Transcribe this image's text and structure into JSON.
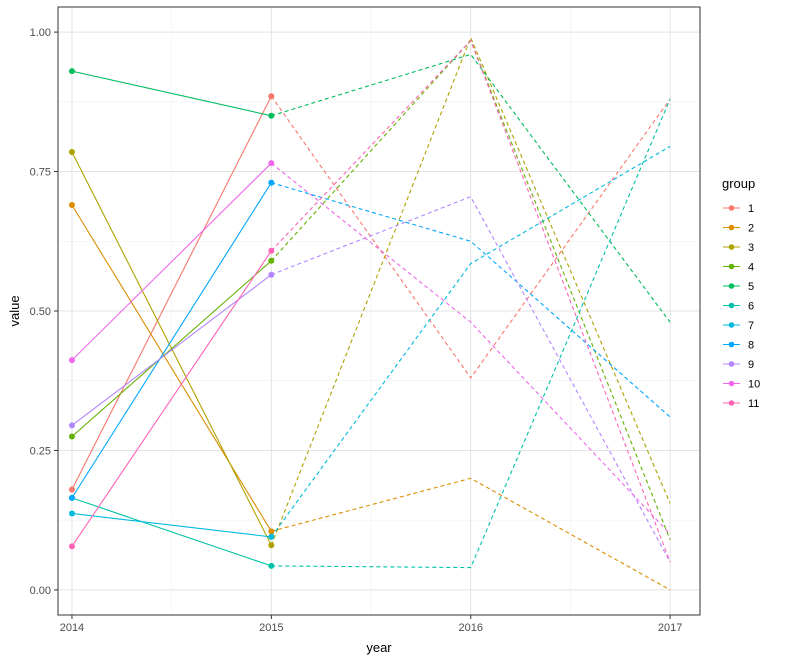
{
  "chart_data": {
    "type": "line",
    "title": "",
    "xlabel": "year",
    "ylabel": "value",
    "x": [
      2014,
      2015,
      2016,
      2017
    ],
    "x_tick_labels": [
      "2014",
      "2015",
      "2016",
      "2017"
    ],
    "xlim": [
      2013.93,
      2017.15
    ],
    "ylim": [
      -0.045,
      1.045
    ],
    "y_ticks": [
      0.0,
      0.25,
      0.5,
      0.75,
      1.0
    ],
    "y_tick_labels": [
      "0.00",
      "0.25",
      "0.50",
      "0.75",
      "1.00"
    ],
    "grid": true,
    "legend_title": "group",
    "legend_position": "right",
    "observed_style": "solid with points (2014-2015)",
    "projected_style": "dashed (2015-2017)",
    "series": [
      {
        "name": "1",
        "color": "#F8766D",
        "values": [
          0.18,
          0.885,
          0.38,
          0.88
        ]
      },
      {
        "name": "2",
        "color": "#DB8E00",
        "values": [
          0.69,
          0.105,
          0.2,
          0.0
        ]
      },
      {
        "name": "3",
        "color": "#AEA200",
        "values": [
          0.785,
          0.08,
          0.99,
          0.155
        ]
      },
      {
        "name": "4",
        "color": "#64B200",
        "values": [
          0.275,
          0.59,
          0.985,
          0.09
        ]
      },
      {
        "name": "5",
        "color": "#00BD5C",
        "values": [
          0.93,
          0.85,
          0.96,
          0.48
        ]
      },
      {
        "name": "6",
        "color": "#00C1A7",
        "values": [
          0.165,
          0.043,
          0.04,
          0.88
        ]
      },
      {
        "name": "7",
        "color": "#00BADE",
        "values": [
          0.137,
          0.095,
          0.585,
          0.795
        ]
      },
      {
        "name": "8",
        "color": "#00A6FF",
        "values": [
          0.165,
          0.73,
          0.625,
          0.31
        ]
      },
      {
        "name": "9",
        "color": "#B385FF",
        "values": [
          0.295,
          0.565,
          0.705,
          0.05
        ]
      },
      {
        "name": "10",
        "color": "#EF67EB",
        "values": [
          0.412,
          0.765,
          0.48,
          0.1
        ]
      },
      {
        "name": "11",
        "color": "#FF63B6",
        "values": [
          0.078,
          0.608,
          0.985,
          0.05
        ]
      }
    ]
  }
}
